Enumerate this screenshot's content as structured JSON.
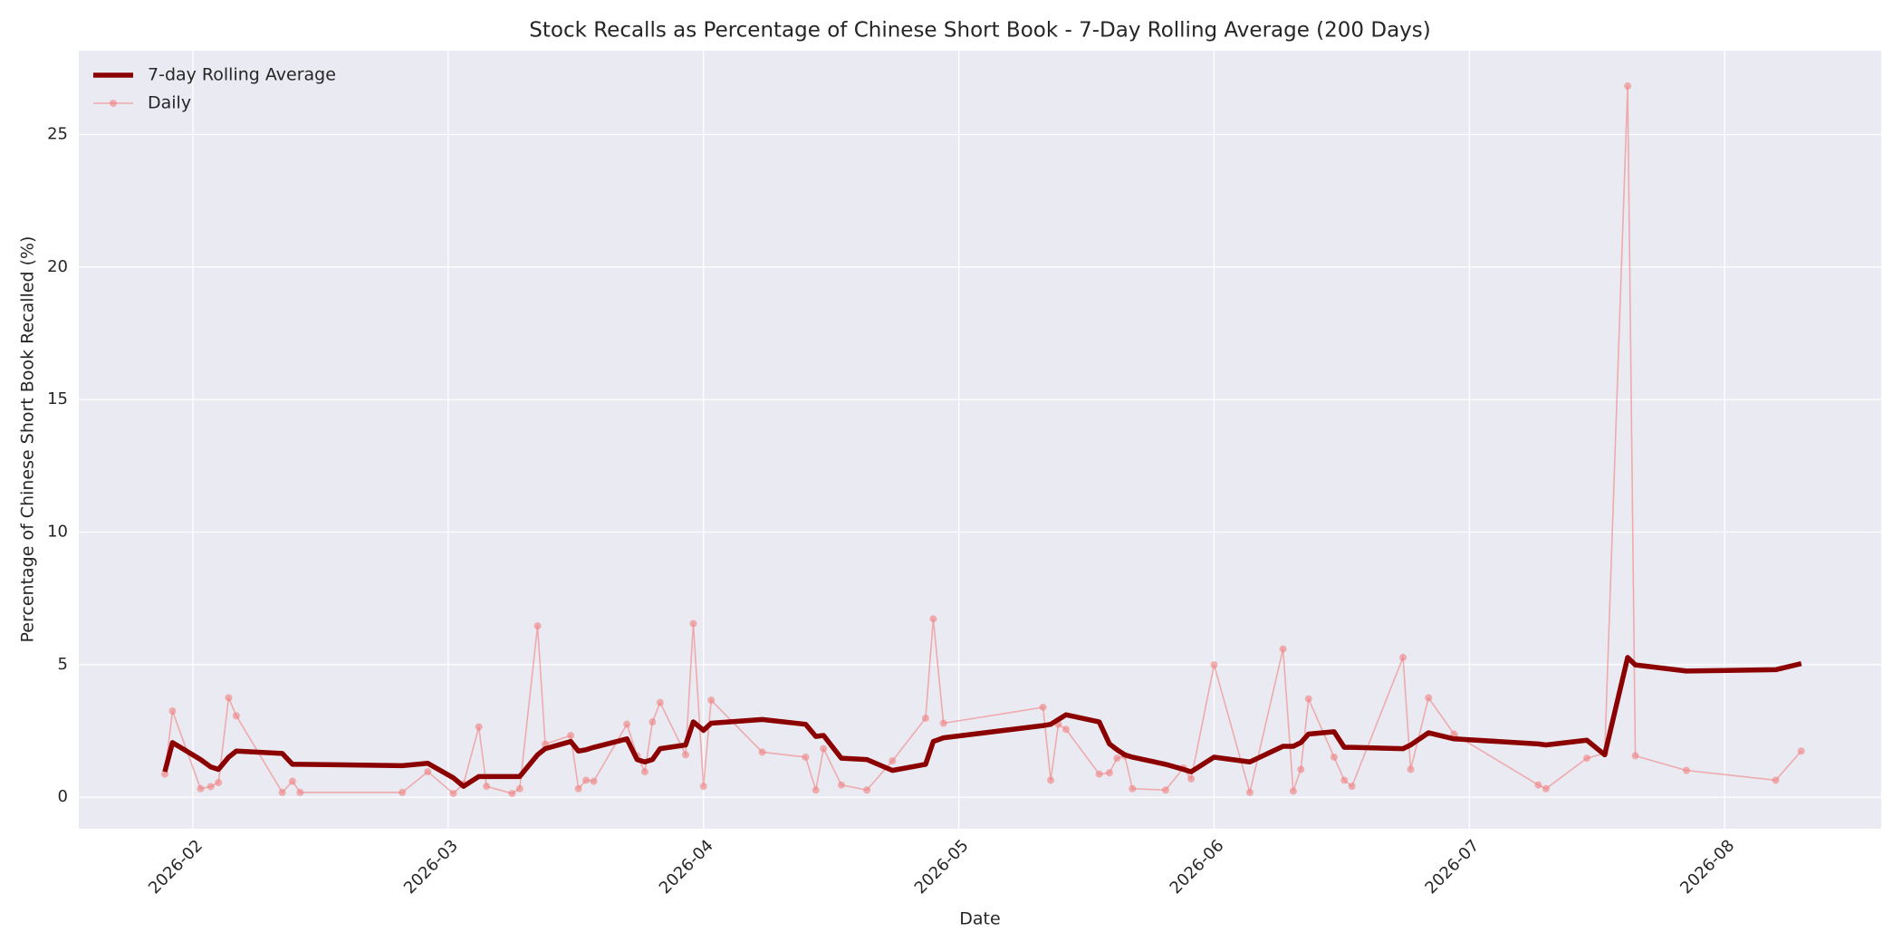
{
  "chart_data": {
    "type": "line",
    "title": "Stock Recalls as Percentage of Chinese Short Book - 7-Day Rolling Average (200 Days)",
    "x_label": "Date",
    "y_label": "Percentage of Chinese Short Book Recalled (%)",
    "x": [
      1.89,
      1.92,
      2.03,
      2.07,
      2.1,
      2.14,
      2.17,
      2.35,
      2.39,
      2.42,
      2.82,
      2.92,
      3.02,
      3.06,
      3.12,
      3.15,
      3.25,
      3.28,
      3.35,
      3.38,
      3.48,
      3.51,
      3.54,
      3.57,
      3.7,
      3.74,
      3.77,
      3.8,
      3.83,
      3.93,
      3.96,
      4.0,
      4.03,
      4.23,
      4.4,
      4.44,
      4.47,
      4.54,
      4.64,
      4.74,
      4.87,
      4.9,
      4.94,
      5.33,
      5.36,
      5.39,
      5.42,
      5.55,
      5.59,
      5.62,
      5.65,
      5.68,
      5.81,
      5.88,
      5.91,
      6.0,
      6.14,
      6.27,
      6.31,
      6.34,
      6.37,
      6.47,
      6.51,
      6.54,
      6.74,
      6.77,
      6.84,
      6.94,
      7.27,
      7.3,
      7.46,
      7.53,
      7.62,
      7.65,
      7.85,
      8.2,
      8.3
    ],
    "series": [
      {
        "name": "7-day Rolling Average",
        "color": "#8b0000",
        "marker": false,
        "values": [
          0.96,
          2.06,
          1.42,
          1.14,
          1.05,
          1.51,
          1.74,
          1.65,
          1.24,
          1.24,
          1.19,
          1.28,
          0.73,
          0.41,
          0.78,
          0.78,
          0.78,
          0.78,
          1.6,
          1.83,
          2.1,
          1.74,
          1.79,
          1.88,
          2.2,
          1.42,
          1.33,
          1.42,
          1.83,
          1.97,
          2.84,
          2.52,
          2.79,
          2.93,
          2.75,
          2.29,
          2.33,
          1.47,
          1.42,
          1.01,
          1.24,
          2.1,
          2.24,
          2.7,
          2.75,
          2.93,
          3.11,
          2.84,
          2.01,
          1.79,
          1.6,
          1.51,
          1.24,
          1.05,
          0.96,
          1.51,
          1.33,
          1.92,
          1.92,
          2.06,
          2.38,
          2.47,
          1.88,
          1.88,
          1.83,
          1.97,
          2.43,
          2.2,
          2.01,
          1.97,
          2.15,
          1.6,
          5.27,
          4.99,
          4.76,
          4.81,
          5.04
        ]
      },
      {
        "name": "Daily",
        "color": "#f08080",
        "marker": true,
        "values": [
          0.87,
          3.25,
          0.32,
          0.4,
          0.55,
          3.75,
          3.07,
          0.18,
          0.6,
          0.18,
          0.18,
          0.96,
          0.14,
          0.5,
          2.65,
          0.41,
          0.14,
          0.32,
          6.46,
          2.0,
          2.33,
          0.32,
          0.64,
          0.6,
          2.75,
          1.56,
          0.96,
          2.84,
          3.57,
          1.6,
          6.55,
          0.41,
          3.66,
          1.7,
          1.51,
          0.27,
          1.83,
          0.46,
          0.27,
          1.37,
          2.98,
          6.73,
          2.79,
          3.39,
          0.64,
          2.75,
          2.56,
          0.87,
          0.92,
          1.47,
          1.56,
          0.32,
          0.27,
          1.1,
          0.69,
          4.99,
          0.18,
          5.59,
          0.23,
          1.05,
          3.71,
          1.51,
          0.64,
          0.41,
          5.27,
          1.05,
          3.75,
          2.38,
          0.46,
          0.32,
          1.47,
          1.65,
          26.83,
          1.56,
          1.01,
          0.64,
          1.74
        ]
      }
    ],
    "xlim": [
      1.553,
      8.613
    ],
    "xticks": [
      {
        "value": 2,
        "label": "2026-02"
      },
      {
        "value": 3,
        "label": "2026-03"
      },
      {
        "value": 4,
        "label": "2026-04"
      },
      {
        "value": 5,
        "label": "2026-05"
      },
      {
        "value": 6,
        "label": "2026-06"
      },
      {
        "value": 7,
        "label": "2026-07"
      },
      {
        "value": 8,
        "label": "2026-08"
      }
    ],
    "ylim": [
      -1.19,
      28.16
    ],
    "yticks": [
      0,
      5,
      10,
      15,
      20,
      25
    ],
    "grid": true,
    "legend": "upper-left"
  }
}
